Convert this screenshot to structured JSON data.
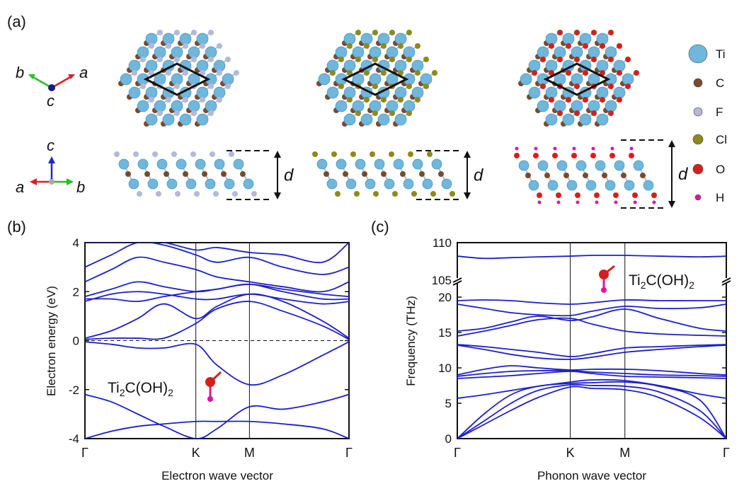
{
  "panel_labels": {
    "a": "(a)",
    "b": "(b)",
    "c": "(c)"
  },
  "axes_top": {
    "b": "b",
    "a": "a",
    "c": "c"
  },
  "axes_side": {
    "c": "c",
    "a": "a",
    "b": "b"
  },
  "d_label": "d",
  "legend": [
    {
      "label": "Ti",
      "color": "#6fb7dc"
    },
    {
      "label": "C",
      "color": "#7a4a2c"
    },
    {
      "label": "F",
      "color": "#b5b8d8"
    },
    {
      "label": "Cl",
      "color": "#8c8a1a"
    },
    {
      "label": "O",
      "color": "#d3201a"
    },
    {
      "label": "H",
      "color": "#d9199c"
    }
  ],
  "structures": [
    {
      "termination": "F",
      "term_color": "#b5b8d8"
    },
    {
      "termination": "Cl",
      "term_color": "#8c8a1a"
    },
    {
      "termination": "OH",
      "term_color": "#d3201a"
    }
  ],
  "colors": {
    "band": "#1e1ec8",
    "ti": "#6fb7dc",
    "c": "#7a4a2c",
    "o": "#d3201a",
    "h": "#d9199c"
  },
  "chart_data": [
    {
      "type": "line",
      "title": "",
      "material_label": {
        "main": "Ti",
        "sub1": "2",
        "mid": "C(OH)",
        "sub2": "2"
      },
      "xlabel": "Electron wave vector",
      "ylabel": "Electron energy (eV)",
      "ylim": [
        -4,
        4
      ],
      "yticks": [
        "4",
        "2",
        "0",
        "-2",
        "-4"
      ],
      "ytick_values": [
        4,
        2,
        0,
        -2,
        -4
      ],
      "kpoints": [
        "Γ",
        "K",
        "M",
        "Γ"
      ],
      "kpos": [
        0,
        0.42,
        0.623,
        1
      ],
      "fermi_level": 0,
      "series": [
        {
          "name": "band1",
          "x": [
            0,
            0.1,
            0.2,
            0.3,
            0.42,
            0.5,
            0.623,
            0.75,
            0.9,
            1
          ],
          "y": [
            -4.0,
            -3.7,
            -3.5,
            -3.4,
            -3.3,
            -3.3,
            -3.3,
            -3.4,
            -3.6,
            -4.0
          ]
        },
        {
          "name": "band2",
          "x": [
            0,
            0.1,
            0.2,
            0.3,
            0.42,
            0.5,
            0.623,
            0.75,
            0.9,
            1
          ],
          "y": [
            -2.2,
            -2.5,
            -3.0,
            -3.5,
            -4.0,
            -3.6,
            -2.7,
            -2.8,
            -2.5,
            -2.2
          ]
        },
        {
          "name": "band3",
          "x": [
            0,
            0.1,
            0.2,
            0.3,
            0.42,
            0.5,
            0.623,
            0.75,
            0.9,
            1
          ],
          "y": [
            -0.05,
            -0.15,
            -0.3,
            -0.3,
            -0.15,
            -1.0,
            -1.8,
            -1.4,
            -0.6,
            -0.05
          ]
        },
        {
          "name": "band4",
          "x": [
            0,
            0.1,
            0.2,
            0.3,
            0.42,
            0.5,
            0.623,
            0.75,
            0.9,
            1
          ],
          "y": [
            0.05,
            0.1,
            0.1,
            0.1,
            0.7,
            1.3,
            1.6,
            1.2,
            0.6,
            0.05
          ]
        },
        {
          "name": "band5",
          "x": [
            0,
            0.1,
            0.2,
            0.3,
            0.42,
            0.5,
            0.623,
            0.75,
            0.9,
            1
          ],
          "y": [
            0.1,
            0.4,
            0.9,
            1.5,
            0.9,
            1.4,
            1.9,
            1.6,
            0.8,
            0.1
          ]
        },
        {
          "name": "band6",
          "x": [
            0,
            0.1,
            0.2,
            0.3,
            0.42,
            0.5,
            0.623,
            0.75,
            0.9,
            1
          ],
          "y": [
            1.6,
            1.9,
            2.0,
            1.9,
            1.7,
            1.7,
            1.9,
            1.7,
            1.5,
            1.6
          ]
        },
        {
          "name": "band7",
          "x": [
            0,
            0.1,
            0.2,
            0.3,
            0.42,
            0.5,
            0.623,
            0.75,
            0.9,
            1
          ],
          "y": [
            1.7,
            1.7,
            1.6,
            1.8,
            2.0,
            2.1,
            2.3,
            2.0,
            1.7,
            1.7
          ]
        },
        {
          "name": "band8",
          "x": [
            0,
            0.1,
            0.2,
            0.3,
            0.42,
            0.5,
            0.623,
            0.75,
            0.9,
            1
          ],
          "y": [
            1.8,
            2.1,
            2.4,
            2.2,
            2.0,
            2.1,
            2.3,
            2.1,
            1.9,
            1.8
          ]
        },
        {
          "name": "band9",
          "x": [
            0,
            0.1,
            0.2,
            0.3,
            0.42,
            0.5,
            0.623,
            0.75,
            0.9,
            1
          ],
          "y": [
            2.4,
            2.9,
            3.4,
            3.2,
            2.9,
            2.6,
            2.4,
            2.2,
            2.0,
            2.4
          ]
        },
        {
          "name": "band10",
          "x": [
            0,
            0.1,
            0.2,
            0.3,
            0.42,
            0.5,
            0.623,
            0.75,
            0.9,
            1
          ],
          "y": [
            3.0,
            3.5,
            4.0,
            3.9,
            3.5,
            3.2,
            3.4,
            3.0,
            2.7,
            3.0
          ]
        },
        {
          "name": "band11",
          "x": [
            0,
            0.1,
            0.2,
            0.3,
            0.42,
            0.5,
            0.623,
            0.75,
            0.9,
            1
          ],
          "y": [
            4.0,
            4.0,
            4.0,
            4.0,
            3.7,
            3.8,
            3.6,
            3.5,
            3.2,
            4.0
          ]
        }
      ]
    },
    {
      "type": "line",
      "title": "",
      "material_label": {
        "main": "Ti",
        "sub1": "2",
        "mid": "C(OH)",
        "sub2": "2"
      },
      "xlabel": "Phonon wave vector",
      "ylabel": "Frequency (THz)",
      "ylim": [
        0,
        110
      ],
      "axis_break": [
        21,
        105
      ],
      "yticks": [
        "110",
        "105",
        "20",
        "15",
        "10",
        "5",
        "0"
      ],
      "ytick_values": [
        110,
        105,
        20,
        15,
        10,
        5,
        0
      ],
      "kpoints": [
        "Γ",
        "K",
        "M",
        "Γ"
      ],
      "kpos": [
        0,
        0.42,
        0.623,
        1
      ],
      "series": [
        {
          "name": "acoustic1",
          "x": [
            0,
            0.1,
            0.2,
            0.3,
            0.42,
            0.5,
            0.623,
            0.75,
            0.9,
            1
          ],
          "y": [
            0,
            2.0,
            4.0,
            5.8,
            7.3,
            7.1,
            6.9,
            5.8,
            3.0,
            0
          ]
        },
        {
          "name": "acoustic2",
          "x": [
            0,
            0.1,
            0.2,
            0.3,
            0.42,
            0.5,
            0.623,
            0.75,
            0.9,
            1
          ],
          "y": [
            0,
            2.5,
            5.0,
            6.8,
            7.6,
            7.5,
            7.4,
            6.6,
            4.0,
            0
          ]
        },
        {
          "name": "acoustic3",
          "x": [
            0,
            0.1,
            0.2,
            0.3,
            0.42,
            0.5,
            0.623,
            0.75,
            0.9,
            1
          ],
          "y": [
            0,
            3.5,
            6.2,
            7.4,
            7.8,
            7.9,
            8.0,
            7.4,
            5.5,
            0
          ]
        },
        {
          "name": "optical1",
          "x": [
            0,
            0.1,
            0.2,
            0.3,
            0.42,
            0.5,
            0.623,
            0.75,
            0.9,
            1
          ],
          "y": [
            5.7,
            6.2,
            6.8,
            7.4,
            8.0,
            8.3,
            8.2,
            7.5,
            6.3,
            5.7
          ]
        },
        {
          "name": "optical2",
          "x": [
            0,
            0.1,
            0.2,
            0.3,
            0.42,
            0.5,
            0.623,
            0.75,
            0.9,
            1
          ],
          "y": [
            8.5,
            8.7,
            8.9,
            9.2,
            9.5,
            9.2,
            8.8,
            8.7,
            8.6,
            8.5
          ]
        },
        {
          "name": "optical3",
          "x": [
            0,
            0.1,
            0.2,
            0.3,
            0.42,
            0.5,
            0.623,
            0.75,
            0.9,
            1
          ],
          "y": [
            8.8,
            9.2,
            9.5,
            9.6,
            9.6,
            9.4,
            9.2,
            9.0,
            8.9,
            8.8
          ]
        },
        {
          "name": "optical4",
          "x": [
            0,
            0.1,
            0.2,
            0.3,
            0.42,
            0.5,
            0.623,
            0.75,
            0.9,
            1
          ],
          "y": [
            9.0,
            9.8,
            10.3,
            10.0,
            9.7,
            9.8,
            9.8,
            9.6,
            9.2,
            9.0
          ]
        },
        {
          "name": "optical5",
          "x": [
            0,
            0.1,
            0.2,
            0.3,
            0.42,
            0.5,
            0.623,
            0.75,
            0.9,
            1
          ],
          "y": [
            13.2,
            12.6,
            11.9,
            11.4,
            11.2,
            11.5,
            12.2,
            12.6,
            13.0,
            13.2
          ]
        },
        {
          "name": "optical6",
          "x": [
            0,
            0.1,
            0.2,
            0.3,
            0.42,
            0.5,
            0.623,
            0.75,
            0.9,
            1
          ],
          "y": [
            13.3,
            13.0,
            12.6,
            12.2,
            11.6,
            12.0,
            12.8,
            13.0,
            13.2,
            13.3
          ]
        },
        {
          "name": "optical7",
          "x": [
            0,
            0.1,
            0.2,
            0.3,
            0.42,
            0.5,
            0.623,
            0.75,
            0.9,
            1
          ],
          "y": [
            14.5,
            15.2,
            16.0,
            16.8,
            17.0,
            16.2,
            15.2,
            14.8,
            14.6,
            14.5
          ]
        },
        {
          "name": "optical8",
          "x": [
            0,
            0.1,
            0.2,
            0.3,
            0.42,
            0.5,
            0.623,
            0.75,
            0.9,
            1
          ],
          "y": [
            15.2,
            15.6,
            16.5,
            17.3,
            16.7,
            17.2,
            18.3,
            17.0,
            15.6,
            15.2
          ]
        },
        {
          "name": "optical9",
          "x": [
            0,
            0.1,
            0.2,
            0.3,
            0.42,
            0.5,
            0.623,
            0.75,
            0.9,
            1
          ],
          "y": [
            19.0,
            18.4,
            17.8,
            17.5,
            17.4,
            18.0,
            18.7,
            18.4,
            18.5,
            19.0
          ]
        },
        {
          "name": "optical10",
          "x": [
            0,
            0.1,
            0.2,
            0.3,
            0.42,
            0.5,
            0.623,
            0.75,
            0.9,
            1
          ],
          "y": [
            19.5,
            19.6,
            19.5,
            19.2,
            19.0,
            19.2,
            19.6,
            19.5,
            19.5,
            19.5
          ]
        },
        {
          "name": "oh_stretch",
          "x": [
            0,
            0.1,
            0.2,
            0.3,
            0.42,
            0.5,
            0.623,
            0.75,
            0.9,
            1
          ],
          "y": [
            108.2,
            107.9,
            108.0,
            108.1,
            108.2,
            108.3,
            108.3,
            108.2,
            108.1,
            108.2
          ]
        }
      ]
    }
  ]
}
